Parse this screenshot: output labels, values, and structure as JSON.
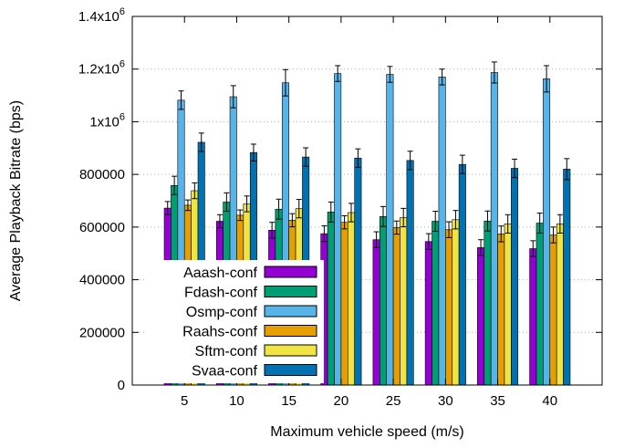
{
  "chart_data": {
    "type": "bar",
    "xlabel": "Maximum vehicle speed (m/s)",
    "ylabel": "Average Playback Bitrate (bps)",
    "categories": [
      "5",
      "10",
      "15",
      "20",
      "25",
      "30",
      "35",
      "40"
    ],
    "ylim": [
      0,
      1400000
    ],
    "yticks": [
      0,
      200000,
      400000,
      600000,
      800000,
      1000000,
      1200000,
      1400000
    ],
    "ytick_labels": [
      {
        "base": "0",
        "exp": ""
      },
      {
        "base": "200000",
        "exp": ""
      },
      {
        "base": "400000",
        "exp": ""
      },
      {
        "base": "600000",
        "exp": ""
      },
      {
        "base": "800000",
        "exp": ""
      },
      {
        "base": "1x10",
        "exp": "6"
      },
      {
        "base": "1.2x10",
        "exp": "6"
      },
      {
        "base": "1.4x10",
        "exp": "6"
      }
    ],
    "grid": "dotted horizontal",
    "legend_position": "lower-left",
    "series": [
      {
        "name": "Aaash-conf",
        "color": "#9400d3",
        "values": [
          672000,
          622000,
          588000,
          575000,
          552000,
          545000,
          522000,
          518000
        ],
        "errors": [
          25000,
          25000,
          30000,
          30000,
          30000,
          30000,
          30000,
          30000
        ]
      },
      {
        "name": "Fdash-conf",
        "color": "#009e73",
        "values": [
          758000,
          695000,
          668000,
          657000,
          640000,
          622000,
          623000,
          615000
        ],
        "errors": [
          35000,
          35000,
          38000,
          38000,
          38000,
          38000,
          38000,
          38000
        ]
      },
      {
        "name": "Osmp-conf",
        "color": "#56b4e9",
        "values": [
          1082000,
          1095000,
          1148000,
          1183000,
          1180000,
          1170000,
          1187000,
          1163000
        ],
        "errors": [
          35000,
          42000,
          50000,
          30000,
          30000,
          30000,
          40000,
          50000
        ]
      },
      {
        "name": "Raahs-conf",
        "color": "#e69f00",
        "values": [
          683000,
          645000,
          626000,
          618000,
          598000,
          590000,
          574000,
          570000
        ],
        "errors": [
          20000,
          20000,
          25000,
          25000,
          25000,
          30000,
          30000,
          30000
        ]
      },
      {
        "name": "Sftm-conf",
        "color": "#f0e442",
        "values": [
          738000,
          688000,
          670000,
          655000,
          636000,
          628000,
          612000,
          612000
        ],
        "errors": [
          30000,
          30000,
          35000,
          35000,
          35000,
          35000,
          35000,
          35000
        ]
      },
      {
        "name": "Svaa-conf",
        "color": "#0072b2",
        "values": [
          922000,
          883000,
          866000,
          862000,
          853000,
          838000,
          823000,
          820000
        ],
        "errors": [
          35000,
          32000,
          35000,
          35000,
          35000,
          35000,
          35000,
          40000
        ]
      }
    ]
  }
}
